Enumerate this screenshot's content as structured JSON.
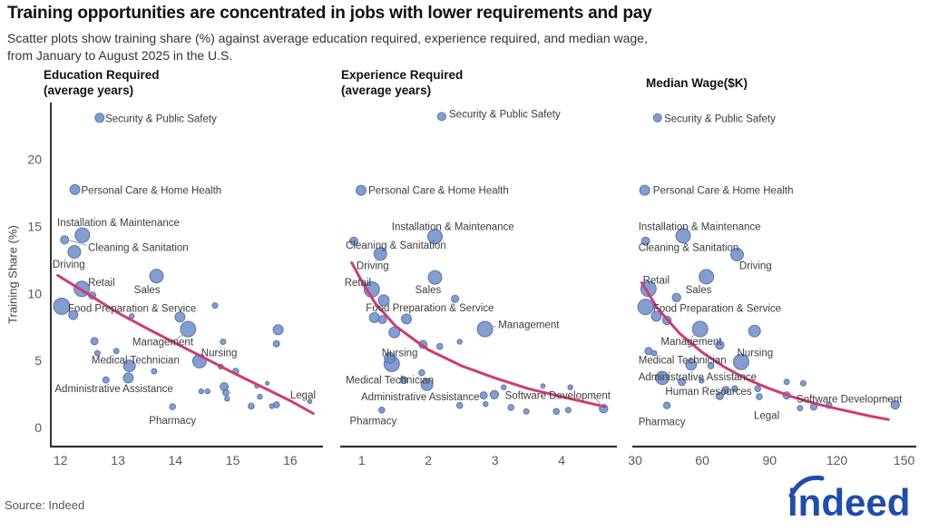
{
  "header": {
    "title": "Training opportunities are concentrated in jobs with lower requirements and pay",
    "subtitle_line1": "Scatter plots show training share (%) against average education required, experience required, and median wage,",
    "subtitle_line2": "from January to August 2025 in the U.S."
  },
  "y_axis": {
    "label": "Training Share (%)",
    "ticks": [
      0,
      5,
      10,
      15,
      20
    ]
  },
  "footer": {
    "source": "Source: Indeed",
    "logo_text": "indeed"
  },
  "colors": {
    "bubble": "#6888c4",
    "bubble_stroke": "#4f6fae",
    "trend": "#d03b74",
    "axis": "#333333",
    "leader": "#9a9a9a",
    "logo_blue": "#1f4cad"
  },
  "chart_data": [
    {
      "type": "scatter",
      "title": "Education Required",
      "subtitle": "(average years)",
      "xticks": [
        12,
        13,
        14,
        15,
        16
      ],
      "xlim": [
        11.83,
        16.57
      ],
      "ylim": [
        -1.42,
        24.24
      ],
      "ylabel": "Training Share (%)",
      "points": [
        [
          12.68,
          23.1,
          5
        ],
        [
          12.25,
          17.75,
          5.5
        ],
        [
          12.38,
          14.35,
          8
        ],
        [
          12.07,
          14.0,
          4.5
        ],
        [
          12.24,
          13.1,
          7
        ],
        [
          12.37,
          10.35,
          8.5
        ],
        [
          13.67,
          11.3,
          7.5
        ],
        [
          12.02,
          9.05,
          9
        ],
        [
          12.55,
          9.85,
          4
        ],
        [
          12.22,
          8.4,
          5
        ],
        [
          13.24,
          8.3,
          2.8
        ],
        [
          14.08,
          8.25,
          5.5
        ],
        [
          14.22,
          7.35,
          8.5
        ],
        [
          14.69,
          9.1,
          3
        ],
        [
          14.83,
          6.4,
          3
        ],
        [
          15.79,
          7.3,
          5.5
        ],
        [
          15.76,
          6.25,
          3.5
        ],
        [
          12.59,
          6.45,
          4
        ],
        [
          12.64,
          5.55,
          3
        ],
        [
          12.97,
          5.7,
          3
        ],
        [
          14.42,
          4.95,
          7.5
        ],
        [
          13.2,
          4.6,
          6.5
        ],
        [
          13.63,
          4.2,
          3
        ],
        [
          13.18,
          3.7,
          5.5
        ],
        [
          12.79,
          3.55,
          3.5
        ],
        [
          14.79,
          4.55,
          2.7
        ],
        [
          15.05,
          4.2,
          3.3
        ],
        [
          14.85,
          3.05,
          4.5
        ],
        [
          14.88,
          2.6,
          3.5
        ],
        [
          14.9,
          2.15,
          2.7
        ],
        [
          15.42,
          3.1,
          2.4
        ],
        [
          15.6,
          3.3,
          2
        ],
        [
          15.47,
          2.3,
          2.7
        ],
        [
          15.76,
          1.7,
          3.3
        ],
        [
          15.32,
          1.6,
          3.3
        ],
        [
          15.68,
          1.6,
          2.7
        ],
        [
          16.34,
          1.95,
          2.4
        ],
        [
          13.95,
          1.55,
          3.3
        ],
        [
          14.45,
          2.7,
          2.7
        ],
        [
          14.56,
          2.7,
          2.7
        ]
      ],
      "labels": [
        {
          "text": "Security & Public Safety",
          "x": 12.78,
          "y": 23.05
        },
        {
          "text": "Personal Care & Home Health",
          "x": 12.36,
          "y": 17.7
        },
        {
          "text": "Installation & Maintenance",
          "x": 11.94,
          "y": 15.3
        },
        {
          "text": "Cleaning & Sanitation",
          "x": 12.48,
          "y": 13.45,
          "leader": [
            12.46,
            13.6,
            12.16,
            13.95
          ]
        },
        {
          "text": "Driving",
          "x": 11.86,
          "y": 12.2
        },
        {
          "text": "Retail",
          "x": 12.48,
          "y": 10.85
        },
        {
          "text": "Sales",
          "x": 13.28,
          "y": 10.3
        },
        {
          "text": "Food Preparation & Service",
          "x": 12.13,
          "y": 8.9
        },
        {
          "text": "Management",
          "x": 13.25,
          "y": 6.4,
          "leader": [
            14.02,
            6.6,
            14.15,
            7.0
          ]
        },
        {
          "text": "Nursing",
          "x": 14.45,
          "y": 5.6
        },
        {
          "text": "Medical Technician",
          "x": 12.54,
          "y": 5.05
        },
        {
          "text": "Administrative Assistance",
          "x": 11.9,
          "y": 2.9
        },
        {
          "text": "Pharmacy",
          "x": 13.95,
          "y": 0.55,
          "anchor": "middle"
        },
        {
          "text": "Legal",
          "x": 16.0,
          "y": 2.45
        }
      ],
      "trend": [
        [
          11.95,
          11.35
        ],
        [
          12.5,
          9.9
        ],
        [
          13,
          8.55
        ],
        [
          13.5,
          7.4
        ],
        [
          14,
          6.3
        ],
        [
          14.5,
          5.2
        ],
        [
          15,
          4.1
        ],
        [
          15.5,
          3.05
        ],
        [
          16,
          2.0
        ],
        [
          16.4,
          1.05
        ]
      ]
    },
    {
      "type": "scatter",
      "title": "Experience Required",
      "subtitle": "(average years)",
      "xticks": [
        1,
        2,
        3,
        4
      ],
      "xlim": [
        0.69,
        4.83
      ],
      "ylim": [
        -1.42,
        24.24
      ],
      "ylabel": "Training Share (%)",
      "points": [
        [
          2.2,
          23.2,
          4.5
        ],
        [
          0.99,
          17.7,
          5.5
        ],
        [
          2.1,
          14.25,
          8
        ],
        [
          0.88,
          13.9,
          4.5
        ],
        [
          1.28,
          12.95,
          7
        ],
        [
          1.15,
          10.3,
          8.5
        ],
        [
          2.1,
          11.2,
          7.5
        ],
        [
          1.33,
          9.5,
          6
        ],
        [
          2.4,
          9.6,
          4
        ],
        [
          1.19,
          8.2,
          5.5
        ],
        [
          1.31,
          8.05,
          4.5
        ],
        [
          1.67,
          8.1,
          5.5
        ],
        [
          2.85,
          7.35,
          8.5
        ],
        [
          1.49,
          7.1,
          6
        ],
        [
          1.92,
          6.2,
          4.5
        ],
        [
          2.17,
          6.05,
          3.3
        ],
        [
          2.47,
          6.4,
          2.7
        ],
        [
          1.45,
          4.75,
          8.5
        ],
        [
          1.42,
          5.2,
          6
        ],
        [
          1.9,
          4.1,
          3.3
        ],
        [
          1.98,
          3.2,
          6.5
        ],
        [
          1.63,
          3.55,
          4
        ],
        [
          2.83,
          2.4,
          4
        ],
        [
          2.99,
          2.45,
          4.7
        ],
        [
          3.13,
          3.0,
          2.7
        ],
        [
          2.86,
          1.75,
          2.7
        ],
        [
          2.47,
          1.65,
          3.3
        ],
        [
          3.24,
          1.5,
          3.3
        ],
        [
          3.47,
          1.2,
          3
        ],
        [
          3.72,
          3.1,
          2.4
        ],
        [
          3.92,
          1.2,
          3.3
        ],
        [
          4.1,
          1.3,
          3
        ],
        [
          4.13,
          3.0,
          2.7
        ],
        [
          4.63,
          1.4,
          4.7
        ],
        [
          1.3,
          1.3,
          3.3
        ]
      ],
      "labels": [
        {
          "text": "Security & Public Safety",
          "x": 2.31,
          "y": 23.4
        },
        {
          "text": "Personal Care & Home Health",
          "x": 1.1,
          "y": 17.7
        },
        {
          "text": "Installation & Maintenance",
          "x": 1.45,
          "y": 15.0
        },
        {
          "text": "Cleaning & Sanitation",
          "x": 0.76,
          "y": 13.6
        },
        {
          "text": "Driving",
          "x": 0.92,
          "y": 12.1
        },
        {
          "text": "Retail",
          "x": 0.74,
          "y": 10.85
        },
        {
          "text": "Sales",
          "x": 1.8,
          "y": 10.3
        },
        {
          "text": "Food Preparation & Service",
          "x": 1.06,
          "y": 8.95
        },
        {
          "text": "Management",
          "x": 3.05,
          "y": 7.7,
          "leader": [
            3.02,
            7.55,
            2.9,
            7.4
          ]
        },
        {
          "text": "Nursing",
          "x": 1.3,
          "y": 5.6
        },
        {
          "text": "Medical Technician",
          "x": 0.76,
          "y": 3.55
        },
        {
          "text": "Administrative Assistance",
          "x": 0.99,
          "y": 2.3
        },
        {
          "text": "Software Development",
          "x": 3.15,
          "y": 2.4,
          "leader": [
            4.5,
            2.25,
            4.6,
            1.6
          ]
        },
        {
          "text": "Pharmacy",
          "x": 0.82,
          "y": 0.5
        }
      ],
      "trend": [
        [
          0.85,
          12.3
        ],
        [
          1.0,
          10.9
        ],
        [
          1.2,
          9.3
        ],
        [
          1.5,
          7.6
        ],
        [
          1.8,
          6.5
        ],
        [
          2.0,
          5.8
        ],
        [
          2.5,
          4.6
        ],
        [
          3.0,
          3.7
        ],
        [
          3.5,
          2.9
        ],
        [
          4.0,
          2.3
        ],
        [
          4.65,
          1.55
        ]
      ]
    },
    {
      "type": "scatter",
      "title": "Median Wage($K)",
      "subtitle": "",
      "xticks": [
        30,
        60,
        90,
        120,
        150
      ],
      "xlim": [
        29.2,
        155.4
      ],
      "ylim": [
        -1.42,
        24.24
      ],
      "ylabel": "Training Share (%)",
      "points": [
        [
          40,
          23.1,
          4.5
        ],
        [
          34.3,
          17.7,
          5.5
        ],
        [
          51.5,
          14.3,
          8
        ],
        [
          34.7,
          13.9,
          4.5
        ],
        [
          75.5,
          12.9,
          7
        ],
        [
          61.8,
          11.25,
          8
        ],
        [
          36,
          10.35,
          8.5
        ],
        [
          48.5,
          9.7,
          4.7
        ],
        [
          34.7,
          9.0,
          8.5
        ],
        [
          39.5,
          8.3,
          5.5
        ],
        [
          44.2,
          8.0,
          4.7
        ],
        [
          59,
          7.35,
          8.5
        ],
        [
          83.3,
          7.2,
          6.5
        ],
        [
          67.8,
          6.15,
          4.7
        ],
        [
          36,
          5.7,
          4
        ],
        [
          38.5,
          5.55,
          3
        ],
        [
          77.3,
          4.9,
          8.5
        ],
        [
          55,
          4.7,
          6
        ],
        [
          63.8,
          4.6,
          3.3
        ],
        [
          42.2,
          3.7,
          7.3
        ],
        [
          50.9,
          3.4,
          4
        ],
        [
          59.7,
          3.5,
          2.7
        ],
        [
          70.5,
          2.8,
          4
        ],
        [
          67.8,
          2.35,
          4
        ],
        [
          74.5,
          2.9,
          3.3
        ],
        [
          84.7,
          2.9,
          3.3
        ],
        [
          85.4,
          2.3,
          3.3
        ],
        [
          97.6,
          3.4,
          3
        ],
        [
          105,
          3.3,
          3
        ],
        [
          97.6,
          2.4,
          4
        ],
        [
          103.6,
          1.45,
          3
        ],
        [
          109.7,
          1.55,
          3.7
        ],
        [
          116.5,
          1.65,
          3.3
        ],
        [
          146,
          1.7,
          4.7
        ],
        [
          44.2,
          1.65,
          3.7
        ]
      ],
      "labels": [
        {
          "text": "Security & Public Safety",
          "x": 43,
          "y": 23.05
        },
        {
          "text": "Personal Care & Home Health",
          "x": 38,
          "y": 17.7
        },
        {
          "text": "Installation & Maintenance",
          "x": 31.5,
          "y": 15.0
        },
        {
          "text": "Cleaning & Sanitation",
          "x": 31.5,
          "y": 13.45
        },
        {
          "text": "Driving",
          "x": 76.5,
          "y": 12.1
        },
        {
          "text": "Retail",
          "x": 33.5,
          "y": 11.0
        },
        {
          "text": "Sales",
          "x": 52.5,
          "y": 10.3
        },
        {
          "text": "Food Preparation & Service",
          "x": 38,
          "y": 8.9
        },
        {
          "text": "Management",
          "x": 41.5,
          "y": 6.45,
          "leader": [
            55,
            6.7,
            58,
            7.15
          ]
        },
        {
          "text": "Nursing",
          "x": 75.5,
          "y": 5.6,
          "leader": [
            77,
            5.45,
            77.5,
            5.1
          ]
        },
        {
          "text": "Medical Technician",
          "x": 31.5,
          "y": 5.05
        },
        {
          "text": "Administrative Assistance",
          "x": 31.5,
          "y": 3.8
        },
        {
          "text": "Human Resources",
          "x": 43.5,
          "y": 2.7
        },
        {
          "text": "Software Development",
          "x": 102,
          "y": 2.15,
          "leader": [
            141,
            2.3,
            145.5,
            1.95
          ]
        },
        {
          "text": "Legal",
          "x": 83,
          "y": 0.9
        },
        {
          "text": "Pharmacy",
          "x": 31.5,
          "y": 0.45
        }
      ],
      "trend": [
        [
          33,
          10.8
        ],
        [
          40,
          8.9
        ],
        [
          50,
          7.0
        ],
        [
          60,
          5.6
        ],
        [
          70,
          4.5
        ],
        [
          80,
          3.6
        ],
        [
          90,
          2.9
        ],
        [
          100,
          2.3
        ],
        [
          110,
          1.8
        ],
        [
          120,
          1.4
        ],
        [
          135,
          0.85
        ],
        [
          143,
          0.6
        ]
      ]
    }
  ]
}
